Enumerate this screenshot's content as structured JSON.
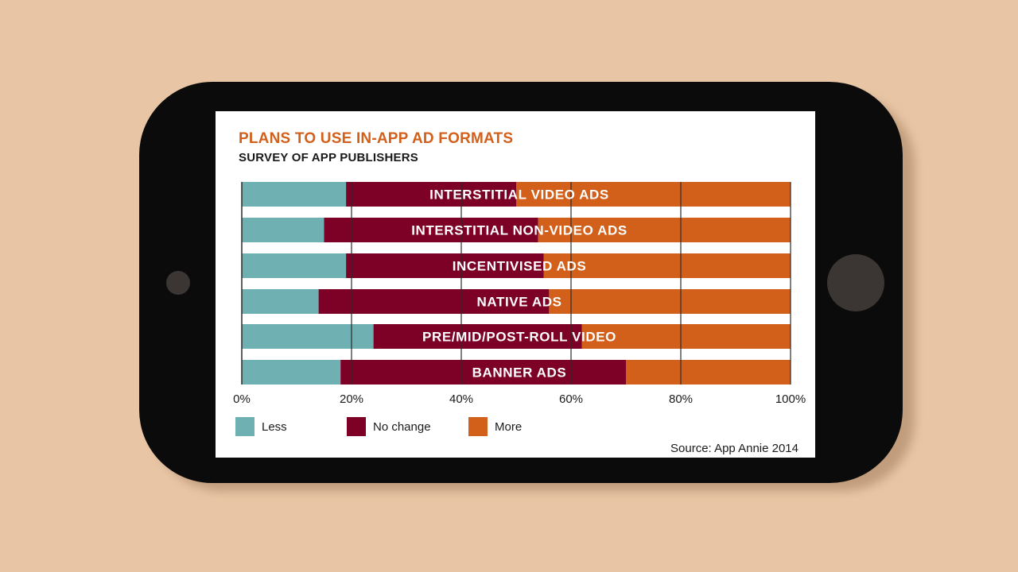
{
  "chart_data": {
    "type": "bar",
    "orientation": "horizontal",
    "stacked": true,
    "title": "PLANS TO USE IN-APP AD FORMATS",
    "subtitle": "SURVEY OF APP PUBLISHERS",
    "categories": [
      "INTERSTITIAL VIDEO ADS",
      "INTERSTITIAL NON-VIDEO ADS",
      "INCENTIVISED ADS",
      "NATIVE ADS",
      "PRE/MID/POST-ROLL VIDEO",
      "BANNER ADS"
    ],
    "series": [
      {
        "name": "Less",
        "color": "#6fb1b2",
        "values": [
          19,
          15,
          19,
          14,
          24,
          18
        ]
      },
      {
        "name": "No change",
        "color": "#7d0027",
        "values": [
          31,
          39,
          36,
          42,
          38,
          52
        ]
      },
      {
        "name": "More",
        "color": "#d2601a",
        "values": [
          50,
          46,
          45,
          44,
          38,
          30
        ]
      }
    ],
    "xlim": [
      0,
      100
    ],
    "xticks": [
      "0%",
      "20%",
      "40%",
      "60%",
      "80%",
      "100%"
    ],
    "grid": true,
    "legend_position": "bottom-left",
    "source": "Source: App Annie 2014"
  }
}
